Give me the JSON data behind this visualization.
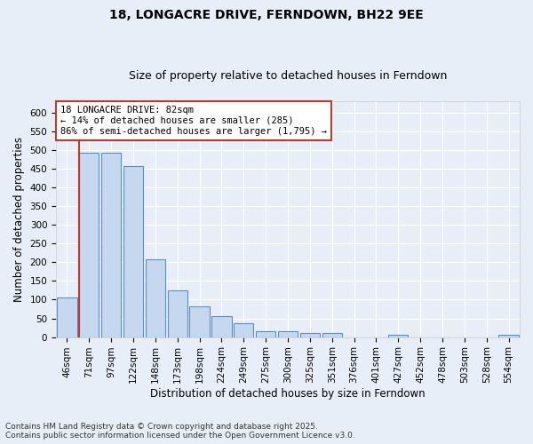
{
  "title": "18, LONGACRE DRIVE, FERNDOWN, BH22 9EE",
  "subtitle": "Size of property relative to detached houses in Ferndown",
  "xlabel": "Distribution of detached houses by size in Ferndown",
  "ylabel": "Number of detached properties",
  "categories": [
    "46sqm",
    "71sqm",
    "97sqm",
    "122sqm",
    "148sqm",
    "173sqm",
    "198sqm",
    "224sqm",
    "249sqm",
    "275sqm",
    "300sqm",
    "325sqm",
    "351sqm",
    "376sqm",
    "401sqm",
    "427sqm",
    "452sqm",
    "478sqm",
    "503sqm",
    "528sqm",
    "554sqm"
  ],
  "values": [
    105,
    493,
    493,
    458,
    208,
    125,
    83,
    57,
    38,
    15,
    15,
    10,
    12,
    0,
    0,
    5,
    0,
    0,
    0,
    0,
    5
  ],
  "bar_color": "#c5d8f0",
  "bar_edge_color": "#5a8fc3",
  "vline_x_idx": 1,
  "vline_color": "#c0392b",
  "annotation_title": "18 LONGACRE DRIVE: 82sqm",
  "annotation_line1": "← 14% of detached houses are smaller (285)",
  "annotation_line2": "86% of semi-detached houses are larger (1,795) →",
  "annotation_box_color": "#ffffff",
  "annotation_box_edge": "#c0392b",
  "ylim": [
    0,
    630
  ],
  "yticks": [
    0,
    50,
    100,
    150,
    200,
    250,
    300,
    350,
    400,
    450,
    500,
    550,
    600
  ],
  "footnote1": "Contains HM Land Registry data © Crown copyright and database right 2025.",
  "footnote2": "Contains public sector information licensed under the Open Government Licence v3.0.",
  "bg_color": "#e8eef8",
  "plot_bg_color": "#e8eef8",
  "title_fontsize": 10,
  "subtitle_fontsize": 9,
  "axis_label_fontsize": 8.5,
  "tick_fontsize": 7.5,
  "footnote_fontsize": 6.5
}
